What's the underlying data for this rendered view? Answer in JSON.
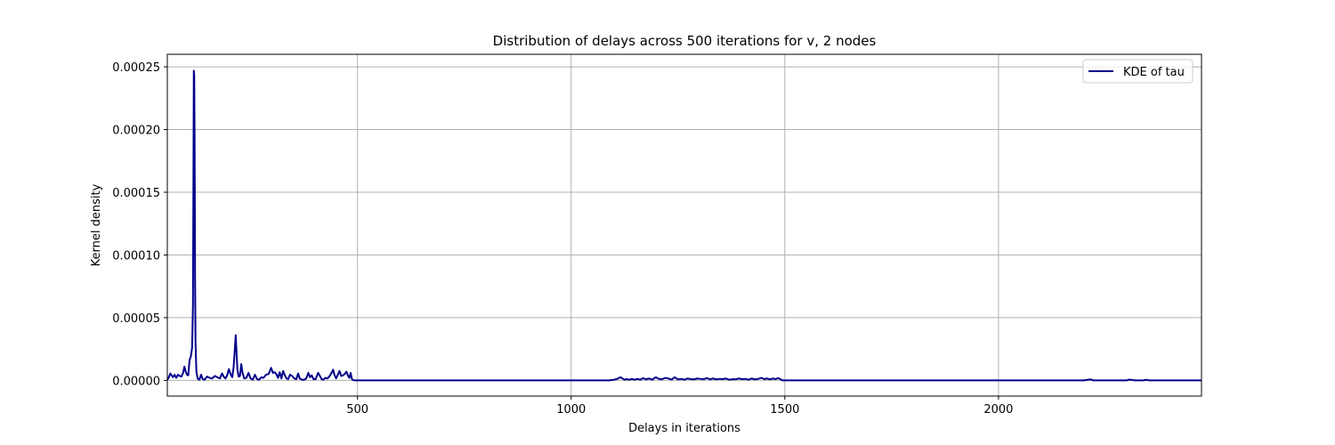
{
  "chart_data": {
    "type": "line",
    "title": "Distribution of delays across 500 iterations for v, 2 nodes",
    "xlabel": "Delays in iterations",
    "ylabel": "Kernel density",
    "xlim": [
      55,
      2475
    ],
    "ylim": [
      -1.25e-05,
      0.00026
    ],
    "x_ticks": [
      500,
      1000,
      1500,
      2000
    ],
    "x_tick_labels": [
      "500",
      "1000",
      "1500",
      "2000"
    ],
    "y_ticks": [
      0,
      5e-05,
      0.0001,
      0.00015,
      0.0002,
      0.00025
    ],
    "y_tick_labels": [
      "0.00000",
      "0.00005",
      "0.00010",
      "0.00015",
      "0.00020",
      "0.00025"
    ],
    "grid": true,
    "legend_position": "top-right",
    "series": [
      {
        "name": "KDE of tau",
        "color": "#00008b",
        "points": [
          [
            55,
            5e-07
          ],
          [
            58,
            2e-06
          ],
          [
            62,
            5.5e-06
          ],
          [
            65,
            4e-06
          ],
          [
            68,
            2.5e-06
          ],
          [
            72,
            4.5e-06
          ],
          [
            76,
            2e-06
          ],
          [
            80,
            4.5e-06
          ],
          [
            84,
            3.5e-06
          ],
          [
            88,
            3e-06
          ],
          [
            92,
            6e-06
          ],
          [
            95,
            1.1e-05
          ],
          [
            98,
            7e-06
          ],
          [
            101,
            4.5e-06
          ],
          [
            104,
            4e-06
          ],
          [
            107,
            1.6e-05
          ],
          [
            110,
            1.9e-05
          ],
          [
            113,
            2.6e-05
          ],
          [
            115,
            6e-05
          ],
          [
            116,
            0.00015
          ],
          [
            117,
            0.000247
          ],
          [
            118,
            0.000243
          ],
          [
            119,
            0.00018
          ],
          [
            120,
            8e-05
          ],
          [
            121,
            3e-05
          ],
          [
            123,
            7e-06
          ],
          [
            126,
            1.5e-06
          ],
          [
            130,
            5e-07
          ],
          [
            134,
            4.5e-06
          ],
          [
            138,
            1e-06
          ],
          [
            142,
            5e-07
          ],
          [
            148,
            3e-06
          ],
          [
            154,
            2e-06
          ],
          [
            160,
            1.5e-06
          ],
          [
            166,
            3.5e-06
          ],
          [
            172,
            2.5e-06
          ],
          [
            178,
            1.5e-06
          ],
          [
            183,
            5.5e-06
          ],
          [
            187,
            3e-06
          ],
          [
            191,
            1.5e-06
          ],
          [
            195,
            4e-06
          ],
          [
            199,
            9e-06
          ],
          [
            203,
            5e-06
          ],
          [
            207,
            2.5e-06
          ],
          [
            210,
            1e-05
          ],
          [
            213,
            2.5e-05
          ],
          [
            215,
            3.6e-05
          ],
          [
            217,
            2.2e-05
          ],
          [
            219,
            8.5e-06
          ],
          [
            222,
            3e-06
          ],
          [
            225,
            3.5e-06
          ],
          [
            228,
            1.3e-05
          ],
          [
            231,
            6e-06
          ],
          [
            235,
            1.5e-06
          ],
          [
            240,
            2e-06
          ],
          [
            245,
            6e-06
          ],
          [
            250,
            1.5e-06
          ],
          [
            255,
            5e-07
          ],
          [
            260,
            4.5e-06
          ],
          [
            265,
            1e-06
          ],
          [
            270,
            5e-07
          ],
          [
            275,
            2.5e-06
          ],
          [
            280,
            2e-06
          ],
          [
            286,
            4.5e-06
          ],
          [
            292,
            5e-06
          ],
          [
            298,
            1e-05
          ],
          [
            302,
            6e-06
          ],
          [
            306,
            6.5e-06
          ],
          [
            310,
            5e-06
          ],
          [
            314,
            2e-06
          ],
          [
            318,
            6.5e-06
          ],
          [
            322,
            1.5e-06
          ],
          [
            326,
            7.5e-06
          ],
          [
            330,
            4e-06
          ],
          [
            334,
            1.5e-06
          ],
          [
            338,
            1e-06
          ],
          [
            342,
            4.5e-06
          ],
          [
            347,
            3.5e-06
          ],
          [
            352,
            1.5e-06
          ],
          [
            357,
            1e-06
          ],
          [
            361,
            5.5e-06
          ],
          [
            365,
            1.5e-06
          ],
          [
            370,
            5e-07
          ],
          [
            375,
            5e-07
          ],
          [
            380,
            1.5e-06
          ],
          [
            385,
            6e-06
          ],
          [
            389,
            2.5e-06
          ],
          [
            393,
            4e-06
          ],
          [
            397,
            1e-06
          ],
          [
            402,
            1e-06
          ],
          [
            408,
            6e-06
          ],
          [
            412,
            3.5e-06
          ],
          [
            416,
            1e-06
          ],
          [
            420,
            5e-07
          ],
          [
            425,
            2e-06
          ],
          [
            430,
            1.5e-06
          ],
          [
            435,
            3.5e-06
          ],
          [
            440,
            6.5e-06
          ],
          [
            443,
            8.5e-06
          ],
          [
            446,
            4.5e-06
          ],
          [
            450,
            1.5e-06
          ],
          [
            454,
            4.5e-06
          ],
          [
            458,
            7.5e-06
          ],
          [
            462,
            3.5e-06
          ],
          [
            466,
            4e-06
          ],
          [
            470,
            5e-06
          ],
          [
            474,
            7e-06
          ],
          [
            478,
            3.5e-06
          ],
          [
            481,
            2e-06
          ],
          [
            484,
            6e-06
          ],
          [
            487,
            1e-06
          ],
          [
            490,
            2e-07
          ],
          [
            495,
            0
          ],
          [
            500,
            0
          ],
          [
            600,
            0
          ],
          [
            700,
            0
          ],
          [
            800,
            0
          ],
          [
            900,
            0
          ],
          [
            1000,
            0
          ],
          [
            1050,
            0
          ],
          [
            1090,
            0
          ],
          [
            1100,
            5e-07
          ],
          [
            1108,
            1.2e-06
          ],
          [
            1115,
            2.5e-06
          ],
          [
            1120,
            1.5e-06
          ],
          [
            1125,
            5e-07
          ],
          [
            1130,
            1e-06
          ],
          [
            1136,
            5e-07
          ],
          [
            1142,
            1.2e-06
          ],
          [
            1148,
            5e-07
          ],
          [
            1155,
            1.2e-06
          ],
          [
            1162,
            5e-07
          ],
          [
            1168,
            1.8e-06
          ],
          [
            1175,
            8e-07
          ],
          [
            1182,
            1.5e-06
          ],
          [
            1190,
            6e-07
          ],
          [
            1198,
            2.5e-06
          ],
          [
            1205,
            1.2e-06
          ],
          [
            1212,
            8e-07
          ],
          [
            1220,
            2e-06
          ],
          [
            1228,
            1.5e-06
          ],
          [
            1235,
            6e-07
          ],
          [
            1242,
            2.5e-06
          ],
          [
            1250,
            8e-07
          ],
          [
            1258,
            1.2e-06
          ],
          [
            1265,
            5e-07
          ],
          [
            1272,
            1.5e-06
          ],
          [
            1280,
            1e-06
          ],
          [
            1288,
            8e-07
          ],
          [
            1295,
            1.5e-06
          ],
          [
            1302,
            1.2e-06
          ],
          [
            1310,
            1e-06
          ],
          [
            1318,
            1.8e-06
          ],
          [
            1325,
            8e-07
          ],
          [
            1332,
            1.5e-06
          ],
          [
            1340,
            8e-07
          ],
          [
            1348,
            1.2e-06
          ],
          [
            1355,
            1e-06
          ],
          [
            1362,
            1.5e-06
          ],
          [
            1370,
            5e-07
          ],
          [
            1378,
            1e-06
          ],
          [
            1385,
            8e-07
          ],
          [
            1392,
            1.5e-06
          ],
          [
            1400,
            1e-06
          ],
          [
            1408,
            1.2e-06
          ],
          [
            1415,
            5e-07
          ],
          [
            1422,
            1.5e-06
          ],
          [
            1430,
            8e-07
          ],
          [
            1438,
            1.2e-06
          ],
          [
            1445,
            2e-06
          ],
          [
            1452,
            1e-06
          ],
          [
            1458,
            1.5e-06
          ],
          [
            1465,
            8e-07
          ],
          [
            1472,
            1.5e-06
          ],
          [
            1478,
            1e-06
          ],
          [
            1485,
            1.8e-06
          ],
          [
            1490,
            8e-07
          ],
          [
            1495,
            0
          ],
          [
            1600,
            0
          ],
          [
            1800,
            0
          ],
          [
            2000,
            0
          ],
          [
            2200,
            0
          ],
          [
            2215,
            8e-07
          ],
          [
            2222,
            0
          ],
          [
            2300,
            0
          ],
          [
            2305,
            6e-07
          ],
          [
            2312,
            4e-07
          ],
          [
            2318,
            0
          ],
          [
            2340,
            0
          ],
          [
            2345,
            5e-07
          ],
          [
            2352,
            0
          ],
          [
            2475,
            0
          ]
        ]
      }
    ]
  }
}
